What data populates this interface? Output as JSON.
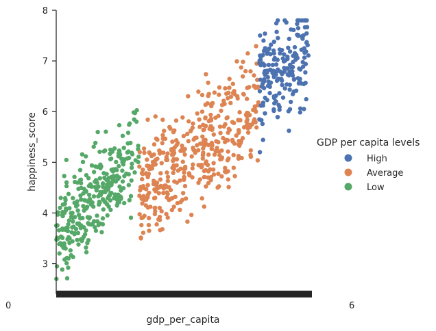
{
  "chart_data": {
    "type": "scatter",
    "title": "",
    "xlabel": "gdp_per_capita",
    "ylabel": "happiness_score",
    "ylim": [
      2.4,
      8.0
    ],
    "yticks": [
      3,
      4,
      5,
      6,
      7,
      8
    ],
    "x_tick_edge_labels": {
      "left": "0",
      "right": "6"
    },
    "grid": false,
    "legend": {
      "title": "GDP per capita levels",
      "placement": "center-right",
      "entries": [
        "High",
        "Average",
        "Low"
      ]
    },
    "series": [
      {
        "name": "High",
        "color": "#4c72b0",
        "gdp_range": [
          1.35,
          1.68
        ],
        "happiness_range": [
          5.2,
          7.8
        ],
        "point_count": 190
      },
      {
        "name": "Average",
        "color": "#dd8452",
        "gdp_range": [
          0.55,
          1.35
        ],
        "happiness_range": [
          3.5,
          7.3
        ],
        "point_count": 420
      },
      {
        "name": "Low",
        "color": "#55a868",
        "gdp_range": [
          0.0,
          0.55
        ],
        "happiness_range": [
          2.7,
          6.2
        ],
        "point_count": 320
      }
    ]
  }
}
